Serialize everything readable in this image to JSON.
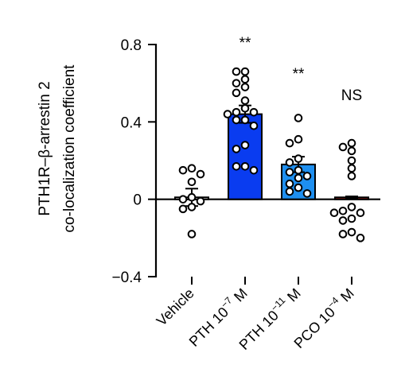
{
  "chart_data": {
    "type": "bar",
    "ylabel_line1": "PTH1R–β-arrestin 2",
    "ylabel_line2": "co-localization coefficient",
    "ylim": [
      -0.4,
      0.8
    ],
    "yticks": [
      {
        "value": -0.4,
        "label": "−0.4"
      },
      {
        "value": 0,
        "label": "0"
      },
      {
        "value": 0.4,
        "label": "0.4"
      },
      {
        "value": 0.8,
        "label": "0.8"
      }
    ],
    "categories": [
      {
        "label": "Vehicle",
        "base": "",
        "exp": "",
        "unit": ""
      },
      {
        "label": "",
        "base": "PTH 10",
        "exp": "−7",
        "unit": " M"
      },
      {
        "label": "",
        "base": "PTH 10",
        "exp": "−11",
        "unit": " M"
      },
      {
        "label": "",
        "base": "PCO 10",
        "exp": "−4",
        "unit": " M"
      }
    ],
    "values": [
      0.01,
      0.44,
      0.18,
      0.01
    ],
    "errors": [
      0.045,
      0.045,
      0.04,
      0.005
    ],
    "bar_colors": [
      "#ffffff",
      "#0a3cf0",
      "#1e8ff0",
      "#a0231e"
    ],
    "significance": [
      "",
      "**",
      "**",
      "NS"
    ],
    "points": [
      [
        0.15,
        0.13,
        0.16,
        0.09,
        -0.01,
        0.01,
        -0.05,
        -0.04,
        0.0,
        -0.18
      ],
      [
        0.66,
        0.66,
        0.62,
        0.6,
        0.58,
        0.55,
        0.51,
        0.47,
        0.45,
        0.45,
        0.44,
        0.41,
        0.41,
        0.38,
        0.28,
        0.26,
        0.17,
        0.15,
        0.17
      ],
      [
        0.42,
        0.31,
        0.29,
        0.21,
        0.19,
        0.15,
        0.14,
        0.12,
        0.11,
        0.08,
        0.06,
        0.04,
        0.03
      ],
      [
        0.29,
        0.27,
        0.25,
        0.2,
        0.16,
        0.12,
        -0.04,
        -0.06,
        -0.07,
        -0.07,
        -0.1,
        -0.11,
        -0.17,
        -0.18,
        -0.2
      ]
    ]
  }
}
